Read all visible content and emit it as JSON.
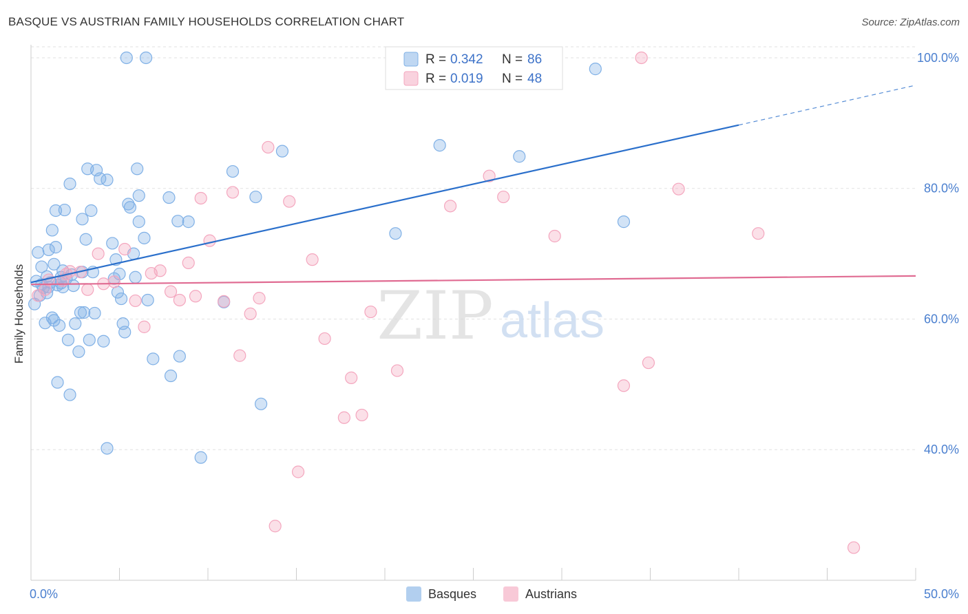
{
  "title": "BASQUE VS AUSTRIAN FAMILY HOUSEHOLDS CORRELATION CHART",
  "source": "Source: ZipAtlas.com",
  "watermark": {
    "zip": "ZIP",
    "atlas": "atlas"
  },
  "chart_data": {
    "type": "scatter",
    "ylabel": "Family Households",
    "xlim": [
      0,
      50
    ],
    "ylim": [
      20,
      102
    ],
    "x_tick_labels": [
      "0.0%",
      "50.0%"
    ],
    "y_ticks": [
      40,
      60,
      80,
      100
    ],
    "y_tick_labels": [
      "40.0%",
      "60.0%",
      "80.0%",
      "100.0%"
    ],
    "grid": true,
    "legend_position": "top-center",
    "series": [
      {
        "name": "Basques",
        "color": "#7fb0e6",
        "line_color": "#2a6fcb",
        "r_label": "R =",
        "r_value": "0.342",
        "n_label": "N =",
        "n_value": "86",
        "trend": {
          "x0": 0,
          "y0": 65.6,
          "x1": 40,
          "y1": 89.7,
          "dash_x1": 50,
          "dash_y1": 95.8
        },
        "points": [
          [
            0.3,
            65.8
          ],
          [
            0.5,
            63.6
          ],
          [
            0.6,
            65.3
          ],
          [
            0.4,
            70.2
          ],
          [
            0.6,
            68.0
          ],
          [
            0.7,
            64.8
          ],
          [
            0.8,
            59.4
          ],
          [
            0.9,
            66.5
          ],
          [
            1.0,
            70.6
          ],
          [
            1.1,
            65.6
          ],
          [
            1.2,
            73.6
          ],
          [
            1.2,
            60.2
          ],
          [
            1.3,
            59.8
          ],
          [
            1.3,
            68.4
          ],
          [
            1.4,
            71.0
          ],
          [
            1.4,
            76.6
          ],
          [
            1.5,
            65.2
          ],
          [
            1.5,
            50.3
          ],
          [
            1.6,
            59.0
          ],
          [
            1.7,
            66.4
          ],
          [
            1.8,
            64.9
          ],
          [
            1.8,
            67.4
          ],
          [
            1.9,
            76.7
          ],
          [
            2.0,
            66.2
          ],
          [
            2.1,
            56.8
          ],
          [
            2.2,
            48.4
          ],
          [
            2.2,
            80.7
          ],
          [
            2.4,
            65.1
          ],
          [
            2.5,
            59.3
          ],
          [
            2.7,
            55.0
          ],
          [
            2.8,
            61.0
          ],
          [
            2.9,
            75.3
          ],
          [
            2.9,
            67.2
          ],
          [
            3.1,
            72.2
          ],
          [
            3.2,
            83.0
          ],
          [
            3.3,
            56.8
          ],
          [
            3.4,
            76.6
          ],
          [
            3.6,
            60.9
          ],
          [
            3.7,
            82.8
          ],
          [
            3.9,
            81.5
          ],
          [
            4.1,
            56.6
          ],
          [
            4.3,
            81.3
          ],
          [
            4.3,
            40.2
          ],
          [
            4.6,
            71.6
          ],
          [
            4.7,
            66.2
          ],
          [
            4.8,
            69.1
          ],
          [
            4.9,
            64.1
          ],
          [
            5.0,
            66.9
          ],
          [
            5.1,
            63.1
          ],
          [
            5.2,
            59.3
          ],
          [
            5.3,
            58.0
          ],
          [
            5.4,
            100.0
          ],
          [
            5.5,
            77.6
          ],
          [
            5.6,
            77.1
          ],
          [
            5.8,
            70.0
          ],
          [
            5.9,
            66.4
          ],
          [
            6.0,
            83.0
          ],
          [
            6.1,
            78.9
          ],
          [
            6.1,
            74.9
          ],
          [
            6.4,
            72.4
          ],
          [
            6.5,
            100.0
          ],
          [
            6.6,
            62.9
          ],
          [
            6.9,
            53.9
          ],
          [
            7.8,
            78.6
          ],
          [
            7.9,
            51.3
          ],
          [
            8.3,
            75.0
          ],
          [
            8.4,
            54.3
          ],
          [
            8.9,
            74.9
          ],
          [
            9.6,
            38.8
          ],
          [
            10.9,
            62.6
          ],
          [
            11.4,
            82.6
          ],
          [
            12.7,
            78.7
          ],
          [
            13.0,
            47.0
          ],
          [
            14.2,
            85.7
          ],
          [
            20.6,
            73.1
          ],
          [
            23.1,
            86.6
          ],
          [
            27.6,
            84.9
          ],
          [
            31.9,
            98.3
          ],
          [
            33.5,
            74.9
          ],
          [
            1.0,
            64.9
          ],
          [
            0.2,
            62.3
          ],
          [
            0.9,
            64.0
          ],
          [
            1.7,
            65.5
          ],
          [
            2.3,
            66.8
          ],
          [
            3.0,
            61.0
          ],
          [
            3.5,
            67.2
          ]
        ]
      },
      {
        "name": "Austrians",
        "color": "#f4a6be",
        "line_color": "#e06b92",
        "r_label": "R =",
        "r_value": "0.019",
        "n_label": "N =",
        "n_value": "48",
        "trend": {
          "x0": 0,
          "y0": 65.3,
          "x1": 50,
          "y1": 66.6
        },
        "points": [
          [
            0.4,
            63.6
          ],
          [
            0.8,
            64.5
          ],
          [
            1.0,
            66.0
          ],
          [
            1.8,
            65.9
          ],
          [
            2.2,
            67.3
          ],
          [
            2.8,
            67.2
          ],
          [
            3.2,
            64.5
          ],
          [
            3.8,
            70.0
          ],
          [
            4.1,
            65.4
          ],
          [
            4.7,
            65.7
          ],
          [
            5.3,
            70.7
          ],
          [
            5.9,
            62.8
          ],
          [
            6.4,
            58.8
          ],
          [
            6.8,
            67.0
          ],
          [
            7.3,
            67.4
          ],
          [
            7.9,
            64.2
          ],
          [
            8.4,
            62.9
          ],
          [
            8.9,
            68.6
          ],
          [
            9.3,
            63.5
          ],
          [
            9.6,
            78.5
          ],
          [
            10.1,
            72.0
          ],
          [
            10.9,
            62.7
          ],
          [
            11.4,
            79.4
          ],
          [
            11.8,
            54.4
          ],
          [
            12.4,
            60.8
          ],
          [
            12.9,
            63.2
          ],
          [
            13.4,
            86.3
          ],
          [
            14.6,
            78.0
          ],
          [
            15.1,
            36.6
          ],
          [
            15.9,
            69.1
          ],
          [
            16.6,
            57.0
          ],
          [
            17.7,
            44.9
          ],
          [
            18.1,
            51.0
          ],
          [
            18.7,
            45.3
          ],
          [
            19.2,
            61.1
          ],
          [
            20.7,
            52.1
          ],
          [
            23.7,
            77.3
          ],
          [
            25.9,
            81.9
          ],
          [
            26.7,
            78.7
          ],
          [
            29.6,
            72.7
          ],
          [
            33.5,
            49.8
          ],
          [
            34.5,
            100.0
          ],
          [
            34.9,
            53.3
          ],
          [
            36.6,
            79.9
          ],
          [
            41.1,
            73.1
          ],
          [
            46.5,
            25.0
          ],
          [
            13.8,
            28.3
          ],
          [
            2.0,
            66.9
          ]
        ]
      }
    ]
  }
}
